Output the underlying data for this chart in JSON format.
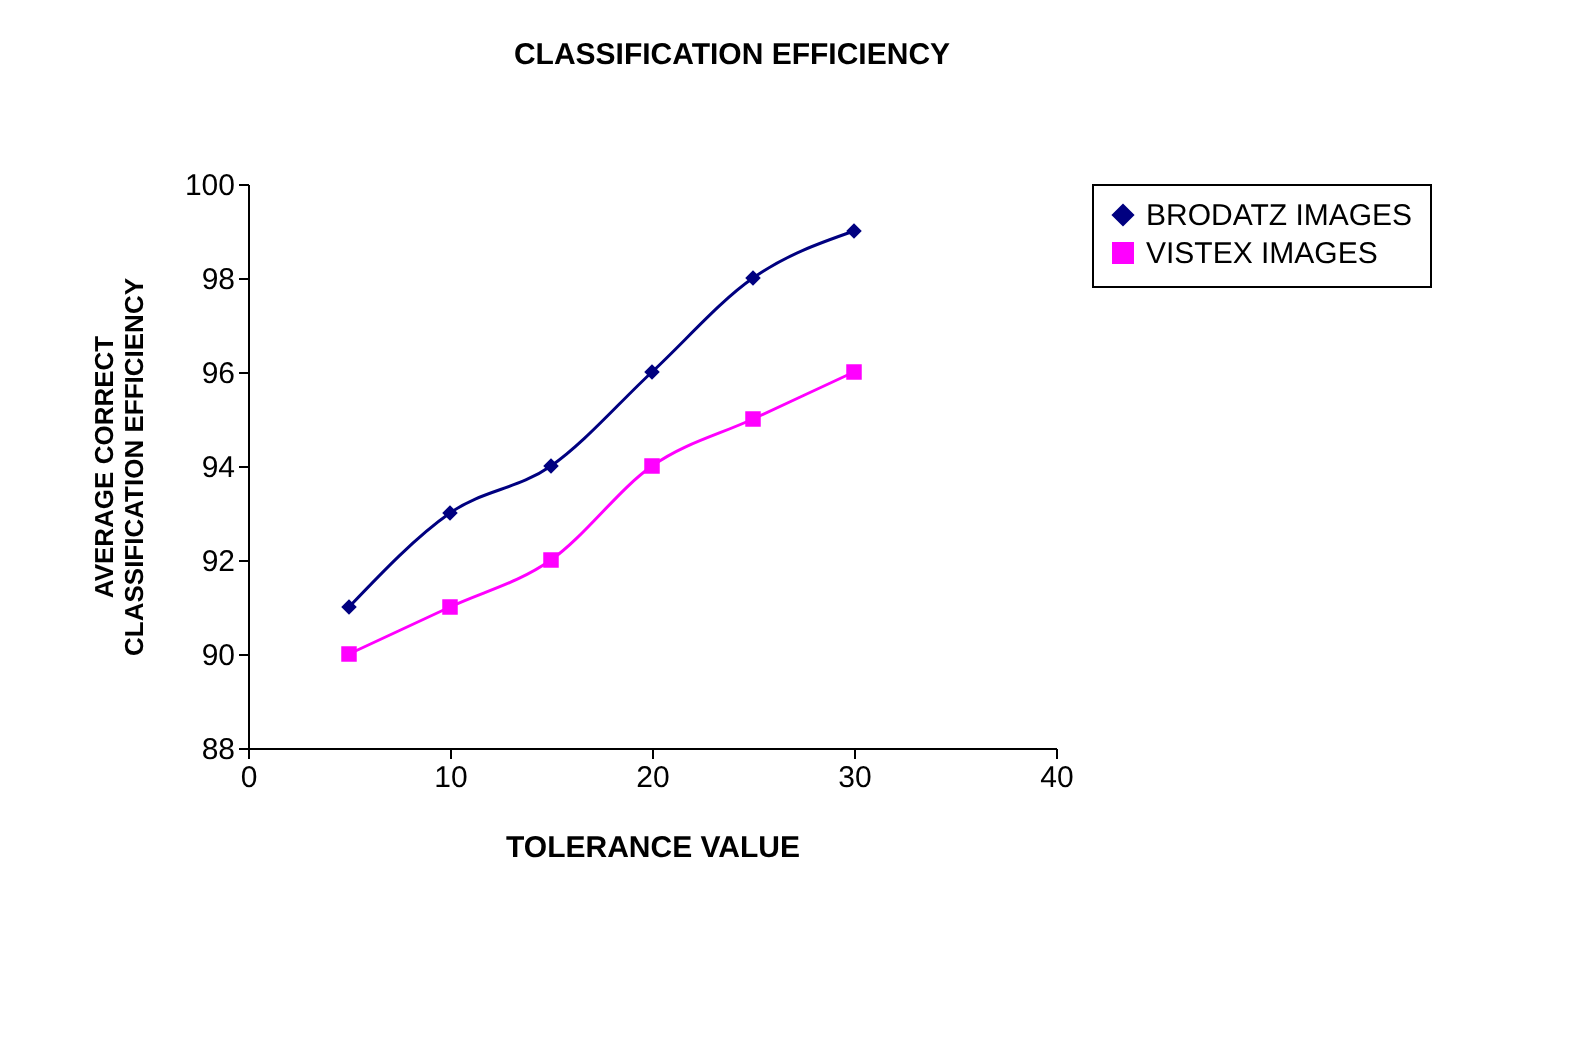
{
  "chart_data": {
    "type": "line",
    "title": "CLASSIFICATION EFFICIENCY",
    "xlabel": "TOLERANCE VALUE",
    "ylabel": "AVERAGE CORRECT\nCLASSIFICATION EFFICIENCY",
    "x": [
      5,
      10,
      15,
      20,
      25,
      30
    ],
    "series": [
      {
        "name": "BRODATZ IMAGES",
        "color": "#000080",
        "marker": "diamond",
        "values": [
          91,
          93,
          94,
          96,
          98,
          99
        ]
      },
      {
        "name": "VISTEX IMAGES",
        "color": "#ff00ff",
        "marker": "square",
        "values": [
          90,
          91,
          92,
          94,
          95,
          96
        ]
      }
    ],
    "xlim": [
      0,
      40
    ],
    "xticks": [
      0,
      10,
      20,
      30,
      40
    ],
    "ylim": [
      88,
      100
    ],
    "yticks": [
      88,
      90,
      92,
      94,
      96,
      98,
      100
    ],
    "grid": false,
    "legend": "right",
    "line_style": "solid"
  }
}
